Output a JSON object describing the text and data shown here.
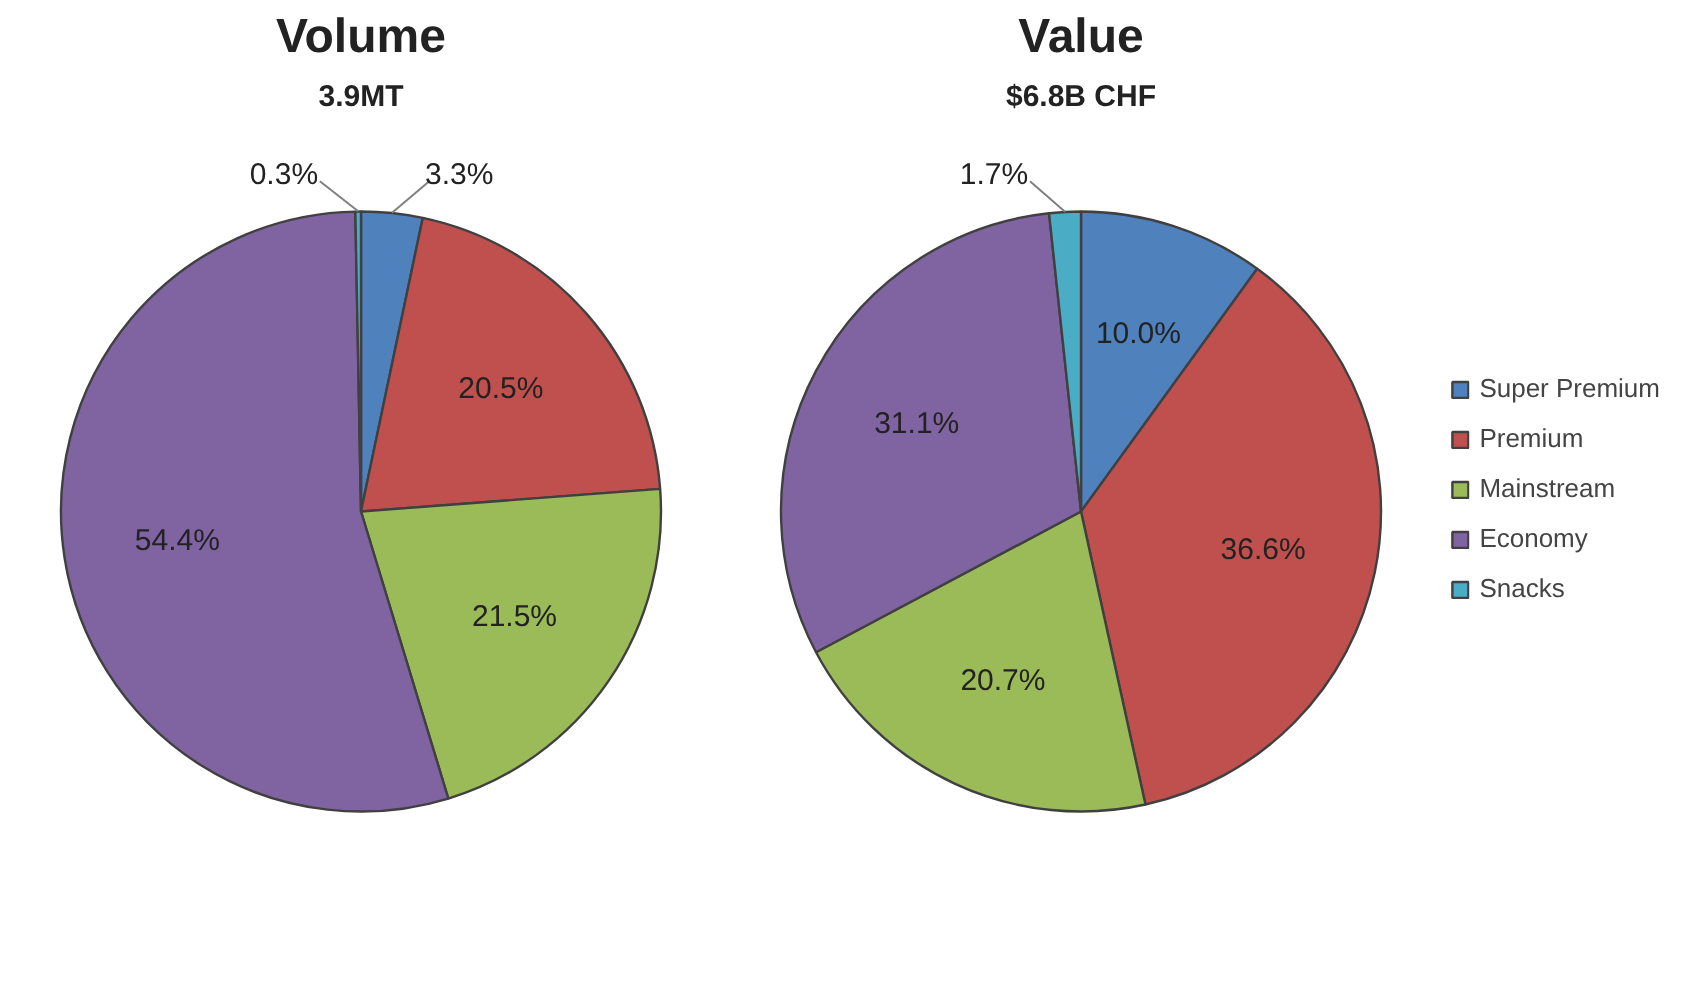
{
  "chart_data": [
    {
      "type": "pie",
      "title": "Volume",
      "subtitle": "3.9MT",
      "categories": [
        null,
        null,
        null,
        null,
        null
      ],
      "values": [
        3.3,
        20.5,
        21.5,
        54.4,
        0.3
      ],
      "colors": [
        "#4f81bd",
        "#c0504d",
        "#9bbb59",
        "#8064a2",
        "#4bacc6"
      ],
      "value_labels": [
        "3.3%",
        "20.5%",
        "21.5%",
        "54.4%",
        "0.3%"
      ],
      "legend": false
    },
    {
      "type": "pie",
      "title": "Value",
      "subtitle": "$6.8B CHF",
      "categories": [
        "Super Premium",
        "Premium",
        "Mainstream",
        "Economy",
        "Snacks"
      ],
      "values": [
        10.0,
        36.6,
        20.7,
        31.1,
        1.7
      ],
      "colors": [
        "#4f81bd",
        "#c0504d",
        "#9bbb59",
        "#8064a2",
        "#4bacc6"
      ],
      "value_labels": [
        "10.0%",
        "36.6%",
        "20.7%",
        "31.1%",
        "1.7%"
      ],
      "legend": "right"
    }
  ]
}
